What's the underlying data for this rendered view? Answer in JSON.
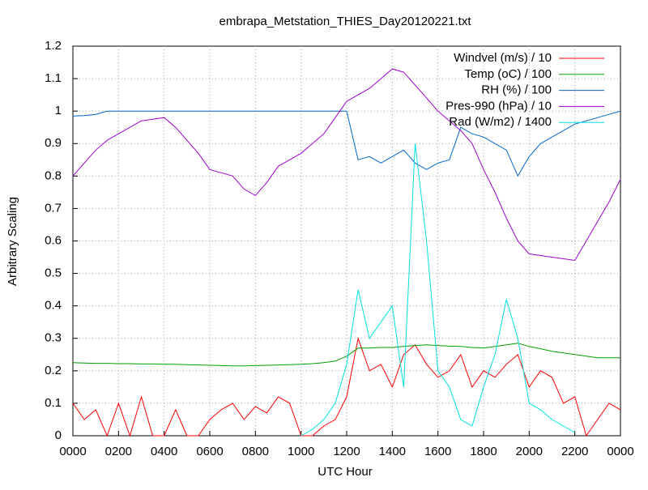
{
  "chart_data": {
    "type": "line",
    "title": "embrapa_Metstation_THIES_Day20120221.txt",
    "x_label": "UTC Hour",
    "y_label": "Arbitrary Scaling",
    "x": [
      0,
      0.5,
      1,
      1.5,
      2,
      2.5,
      3,
      3.5,
      4,
      4.5,
      5,
      5.5,
      6,
      6.5,
      7,
      7.5,
      8,
      8.5,
      9,
      9.5,
      10,
      10.5,
      11,
      11.5,
      12,
      12.5,
      13,
      13.5,
      14,
      14.5,
      15,
      15.5,
      16,
      16.5,
      17,
      17.5,
      18,
      18.5,
      19,
      19.5,
      20,
      20.5,
      21,
      21.5,
      22,
      22.5,
      23,
      23.5,
      24
    ],
    "series": [
      {
        "name": "Windvel (m/s) / 10",
        "color": "#ff0000",
        "values": [
          0.1,
          0.05,
          0.08,
          0,
          0.1,
          0,
          0.12,
          0,
          0,
          0.08,
          0,
          0,
          0.05,
          0.08,
          0.1,
          0.05,
          0.09,
          0.07,
          0.12,
          0.1,
          0,
          0,
          0.03,
          0.05,
          0.12,
          0.3,
          0.2,
          0.22,
          0.15,
          0.25,
          0.28,
          0.22,
          0.18,
          0.2,
          0.25,
          0.15,
          0.2,
          0.18,
          0.22,
          0.25,
          0.15,
          0.2,
          0.18,
          0.1,
          0.12,
          0,
          0.05,
          0.1,
          0.08
        ]
      },
      {
        "name": "Temp (oC) / 100",
        "color": "#00a000",
        "values": [
          0.225,
          0.224,
          0.223,
          0.223,
          0.222,
          0.222,
          0.221,
          0.221,
          0.22,
          0.22,
          0.219,
          0.218,
          0.217,
          0.216,
          0.215,
          0.215,
          0.216,
          0.217,
          0.218,
          0.219,
          0.22,
          0.222,
          0.225,
          0.23,
          0.245,
          0.27,
          0.27,
          0.272,
          0.272,
          0.275,
          0.278,
          0.28,
          0.278,
          0.276,
          0.275,
          0.272,
          0.27,
          0.275,
          0.28,
          0.285,
          0.275,
          0.268,
          0.26,
          0.255,
          0.25,
          0.245,
          0.24,
          0.24,
          0.24
        ]
      },
      {
        "name": "RH (%) / 100",
        "color": "#0066cc",
        "values": [
          0.985,
          0.986,
          0.99,
          1,
          1,
          1,
          1,
          1,
          1,
          1,
          1,
          1,
          1,
          1,
          1,
          1,
          1,
          1,
          1,
          1,
          1,
          1,
          1,
          1,
          1,
          0.85,
          0.86,
          0.84,
          0.86,
          0.88,
          0.84,
          0.82,
          0.84,
          0.85,
          0.95,
          0.93,
          0.92,
          0.9,
          0.88,
          0.8,
          0.86,
          0.9,
          0.92,
          0.94,
          0.96,
          0.97,
          0.98,
          0.99,
          1
        ]
      },
      {
        "name": "Pres-990 (hPa) / 10",
        "color": "#a000d0",
        "values": [
          0.8,
          0.84,
          0.88,
          0.91,
          0.93,
          0.95,
          0.97,
          0.975,
          0.98,
          0.95,
          0.91,
          0.87,
          0.82,
          0.81,
          0.8,
          0.76,
          0.74,
          0.78,
          0.83,
          0.85,
          0.87,
          0.9,
          0.93,
          0.98,
          1.03,
          1.05,
          1.07,
          1.1,
          1.13,
          1.12,
          1.08,
          1.04,
          1.0,
          0.97,
          0.94,
          0.9,
          0.82,
          0.75,
          0.67,
          0.6,
          0.56,
          0.555,
          0.55,
          0.545,
          0.54,
          0.6,
          0.66,
          0.72,
          0.79
        ]
      },
      {
        "name": "Rad (W/m2) / 1400",
        "color": "#00e0e0",
        "values": [
          null,
          null,
          null,
          null,
          null,
          null,
          null,
          null,
          null,
          null,
          null,
          null,
          null,
          null,
          null,
          null,
          null,
          null,
          null,
          null,
          0,
          0.02,
          0.05,
          0.1,
          0.22,
          0.45,
          0.3,
          0.35,
          0.4,
          0.15,
          0.9,
          0.6,
          0.2,
          0.15,
          0.05,
          0.03,
          0.15,
          0.25,
          0.42,
          0.3,
          0.1,
          0.08,
          0.05,
          0.03,
          0.01,
          null,
          null,
          null,
          null
        ]
      }
    ],
    "xlim": [
      0,
      24
    ],
    "xticks": [
      {
        "value": 0,
        "label": "0000"
      },
      {
        "value": 2,
        "label": "0200"
      },
      {
        "value": 4,
        "label": "0400"
      },
      {
        "value": 6,
        "label": "0600"
      },
      {
        "value": 8,
        "label": "0800"
      },
      {
        "value": 10,
        "label": "1000"
      },
      {
        "value": 12,
        "label": "1200"
      },
      {
        "value": 14,
        "label": "1400"
      },
      {
        "value": 16,
        "label": "1600"
      },
      {
        "value": 18,
        "label": "1800"
      },
      {
        "value": 20,
        "label": "2000"
      },
      {
        "value": 22,
        "label": "2200"
      },
      {
        "value": 24,
        "label": "0000"
      }
    ],
    "ylim": [
      0,
      1.2
    ],
    "yticks": [
      0,
      0.1,
      0.2,
      0.3,
      0.4,
      0.5,
      0.6,
      0.7,
      0.8,
      0.9,
      1,
      1.1,
      1.2
    ],
    "grid": true,
    "legend": "top-right"
  }
}
